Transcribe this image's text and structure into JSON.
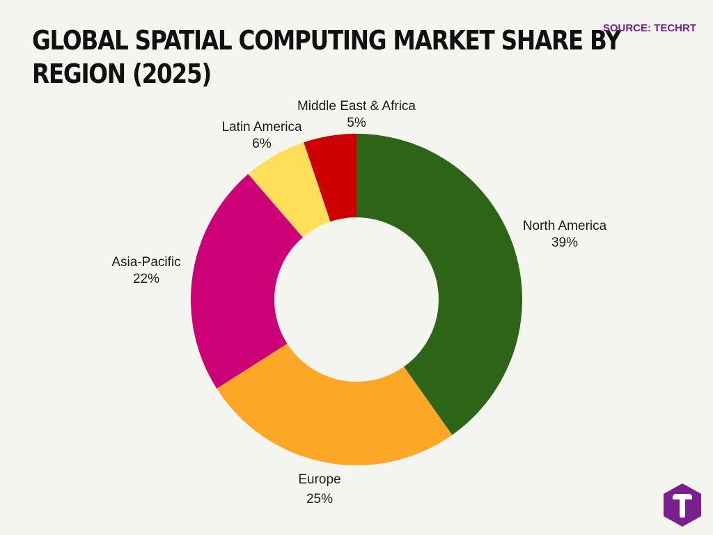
{
  "title_line1": "GLOBAL SPATIAL COMPUTING MARKET SHARE BY",
  "title_line2": "REGION (2025)",
  "source": "SOURCE: TECHRT",
  "chart_data": {
    "type": "pie",
    "style": "donut",
    "segments": [
      {
        "label": "North America",
        "value": 39,
        "display": "39%",
        "color": "#2e6417"
      },
      {
        "label": "Europe",
        "value": 25,
        "display": "25%",
        "color": "#fda726"
      },
      {
        "label": "Asia-Pacific",
        "value": 22,
        "display": "22%",
        "color": "#cc0077"
      },
      {
        "label": "Latin America",
        "value": 6,
        "display": "6%",
        "color": "#ffde59"
      },
      {
        "label": "Middle East & Africa",
        "value": 5,
        "display": "5%",
        "color": "#cc0000"
      }
    ]
  },
  "logo": {
    "letter": "T",
    "color": "#7a1f8f"
  }
}
